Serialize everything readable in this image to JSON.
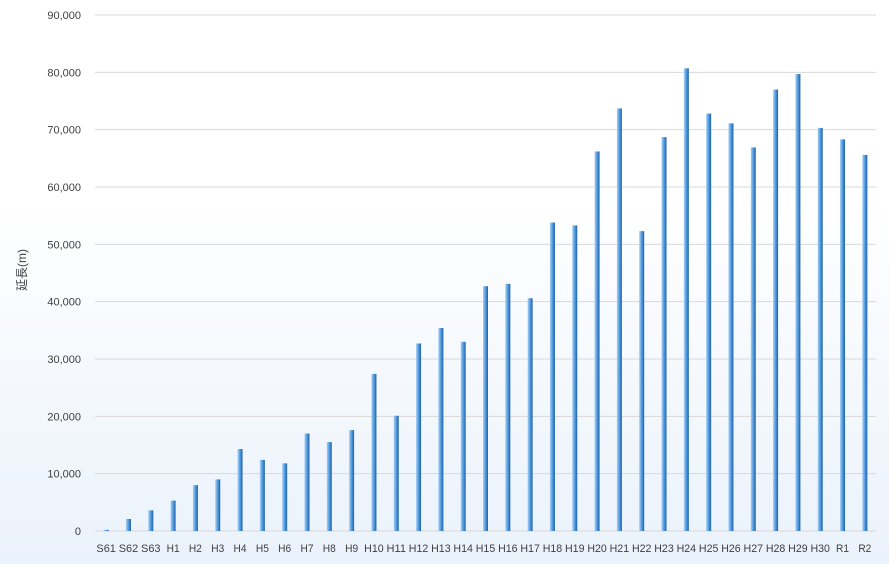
{
  "colors": {
    "bar_light": "#a9d0f5",
    "bar_mid": "#4a96db",
    "bar_dark": "#1f5fa8",
    "grid": "#d9d9d9",
    "tick_text": "#404040"
  },
  "chart_data": {
    "type": "bar",
    "title": "",
    "xlabel": "",
    "ylabel": "延長(m)",
    "ylim": [
      0,
      90000
    ],
    "yticks": [
      0,
      10000,
      20000,
      30000,
      40000,
      50000,
      60000,
      70000,
      80000,
      90000
    ],
    "ytick_labels": [
      "0",
      "10,000",
      "20,000",
      "30,000",
      "40,000",
      "50,000",
      "60,000",
      "70,000",
      "80,000",
      "90,000"
    ],
    "grid": true,
    "legend": "none",
    "categories": [
      "S61",
      "S62",
      "S63",
      "H1",
      "H2",
      "H3",
      "H4",
      "H5",
      "H6",
      "H7",
      "H8",
      "H9",
      "H10",
      "H11",
      "H12",
      "H13",
      "H14",
      "H15",
      "H16",
      "H17",
      "H18",
      "H19",
      "H20",
      "H21",
      "H22",
      "H23",
      "H24",
      "H25",
      "H26",
      "H27",
      "H28",
      "H29",
      "H30",
      "R1",
      "R2"
    ],
    "values": [
      200,
      2100,
      3600,
      5300,
      8000,
      9000,
      14300,
      12400,
      11800,
      17000,
      15500,
      17600,
      27400,
      20100,
      32700,
      35400,
      33000,
      42700,
      43100,
      40600,
      53800,
      53300,
      66200,
      73700,
      52300,
      68700,
      80700,
      72800,
      71100,
      66900,
      77000,
      79700,
      70300,
      68300,
      65600
    ]
  }
}
